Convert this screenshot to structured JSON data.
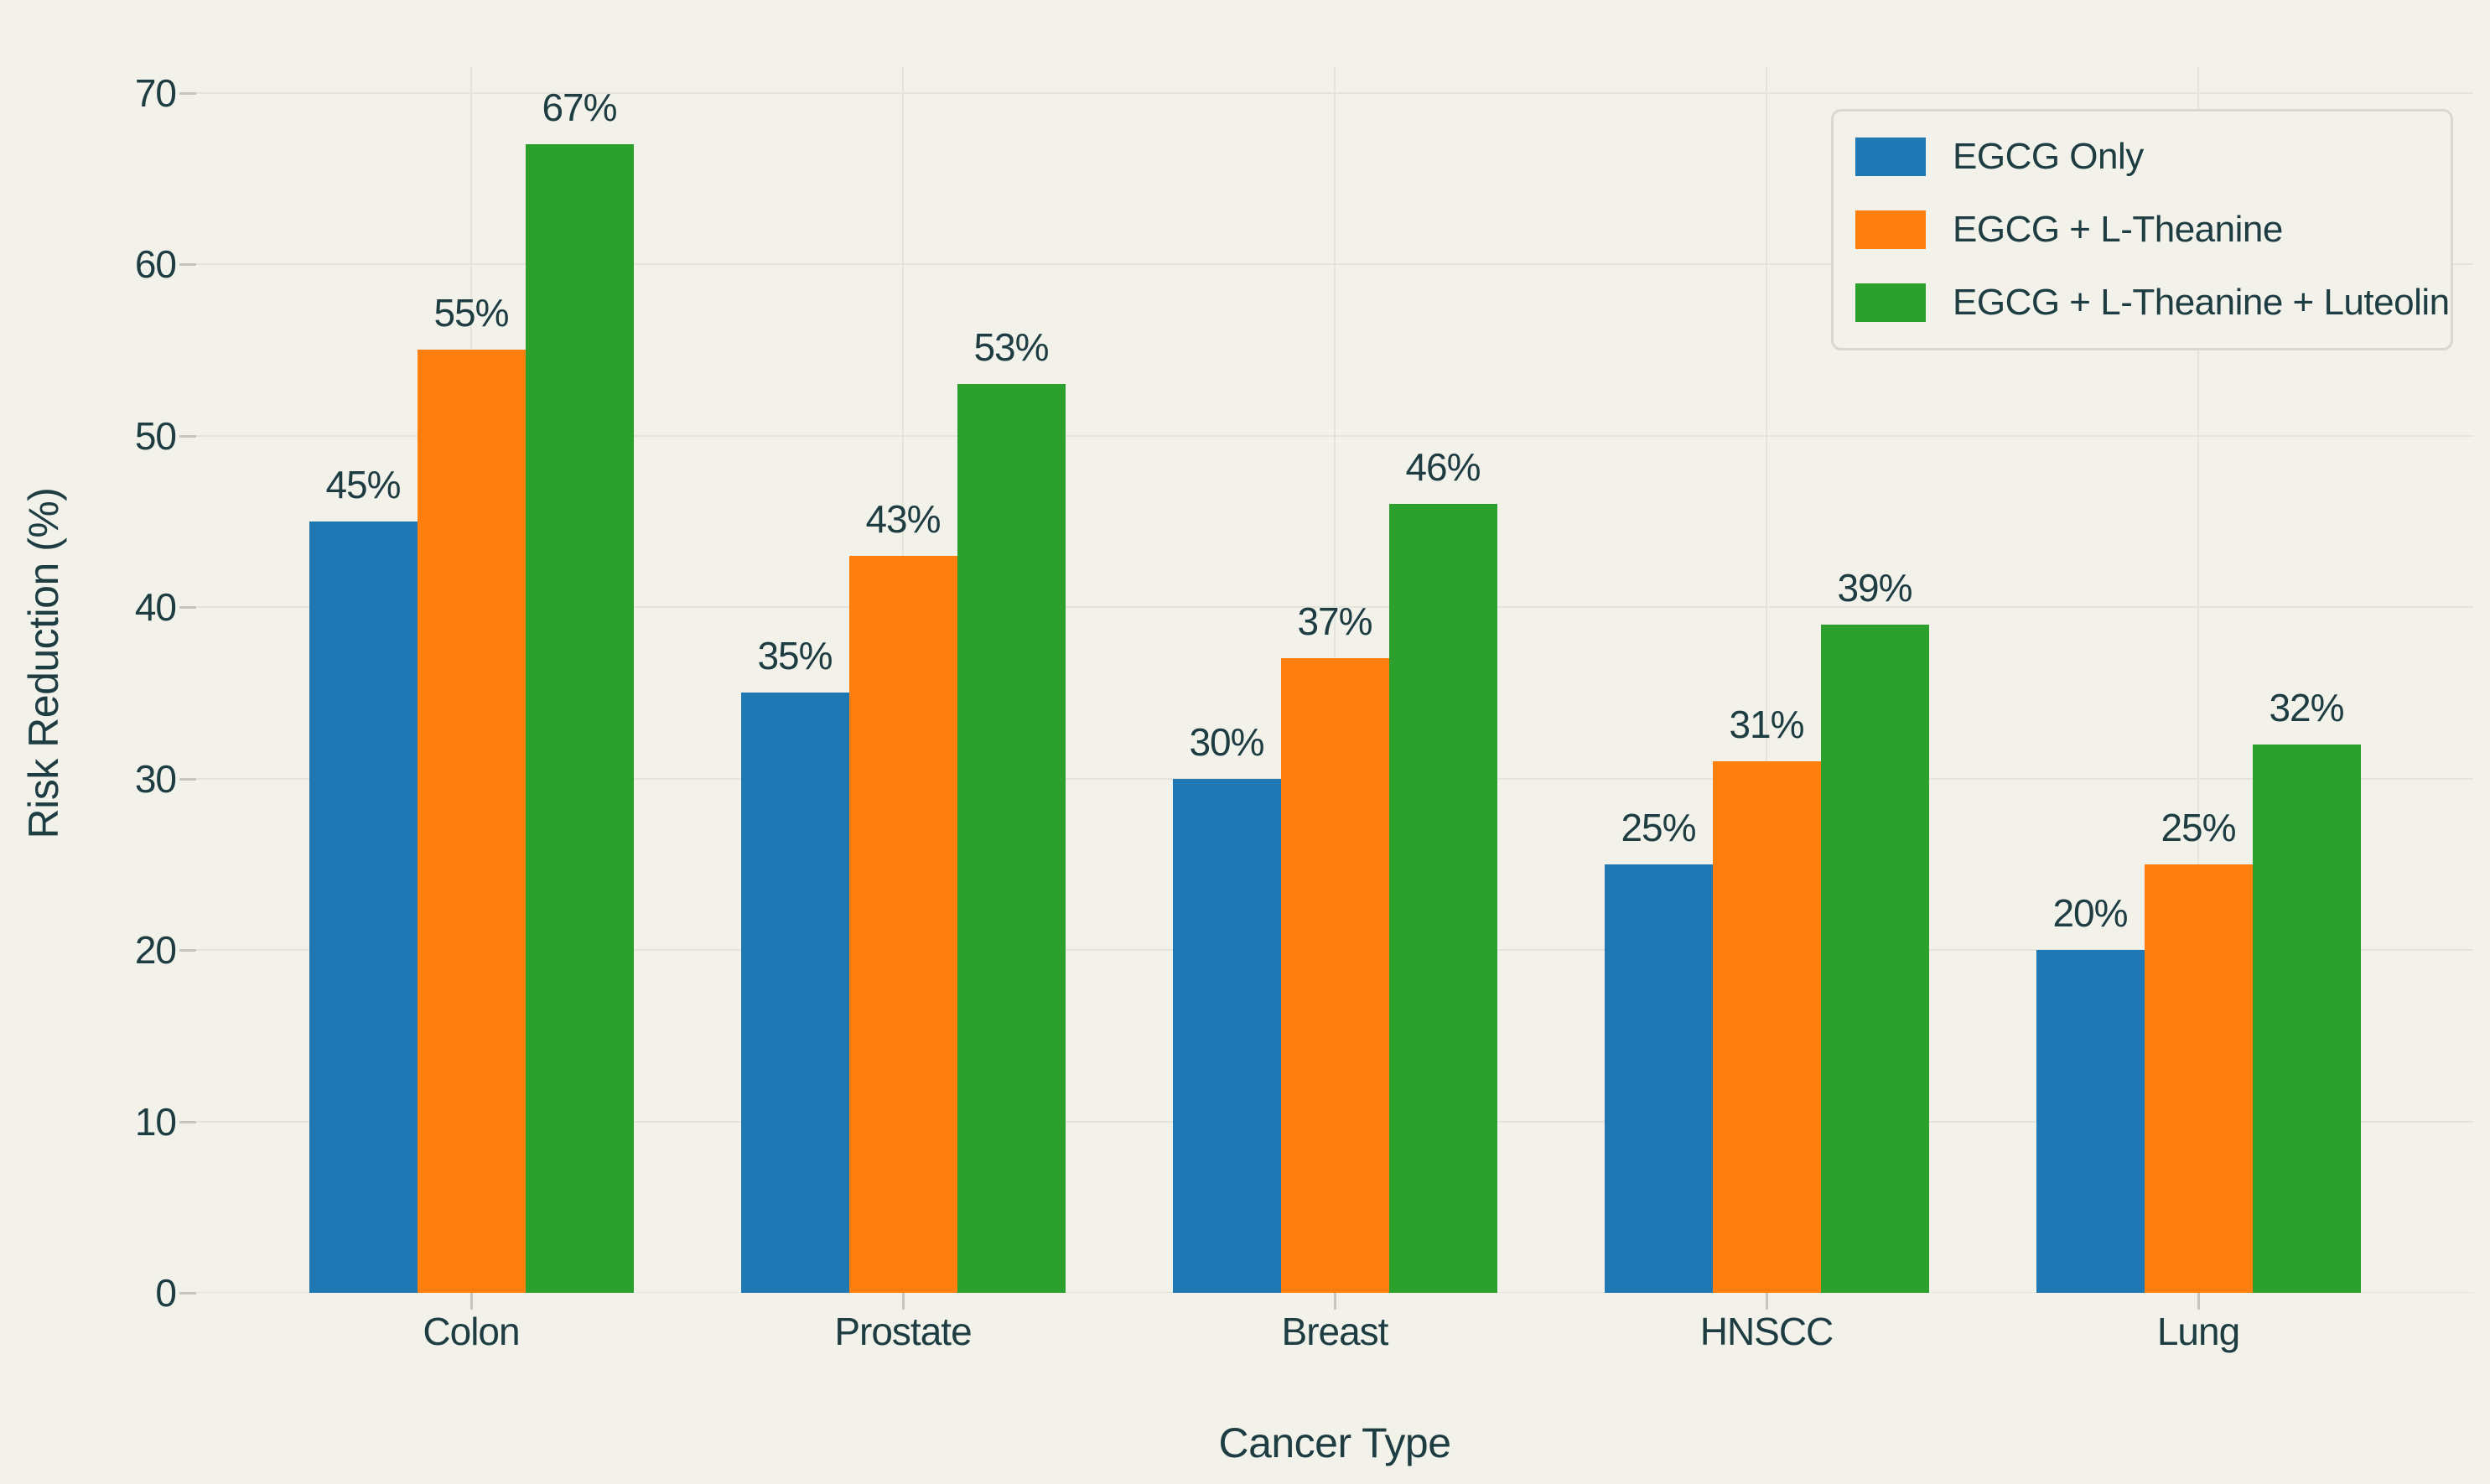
{
  "chart_data": {
    "type": "bar",
    "xlabel": "Cancer Type",
    "ylabel": "Risk Reduction (%)",
    "categories": [
      "Colon",
      "Prostate",
      "Breast",
      "HNSCC",
      "Lung"
    ],
    "series": [
      {
        "name": "EGCG Only",
        "color": "#1f77b4",
        "values": [
          45,
          35,
          30,
          25,
          20
        ]
      },
      {
        "name": "EGCG + L-Theanine",
        "color": "#ff7f0e",
        "values": [
          55,
          43,
          37,
          31,
          25
        ]
      },
      {
        "name": "EGCG + L-Theanine + Luteolin",
        "color": "#2ca02c",
        "values": [
          67,
          53,
          46,
          39,
          32
        ]
      }
    ],
    "value_labels": [
      [
        "45%",
        "35%",
        "30%",
        "25%",
        "20%"
      ],
      [
        "55%",
        "43%",
        "37%",
        "31%",
        "25%"
      ],
      [
        "67%",
        "53%",
        "46%",
        "39%",
        "32%"
      ]
    ],
    "yticks": [
      "0",
      "10",
      "20",
      "30",
      "40",
      "50",
      "60",
      "70"
    ],
    "ytick_values": [
      0,
      10,
      20,
      30,
      40,
      50,
      60,
      70
    ],
    "ylim": [
      0,
      71.5
    ],
    "grid": "both",
    "legend_position": "top-right",
    "theme": {
      "background": "#f2f2ea",
      "text": "#1d3d42",
      "gridline": "#e4e4dd",
      "tick": "#c6c6bf",
      "legend_border": "#d8d8d0"
    }
  }
}
